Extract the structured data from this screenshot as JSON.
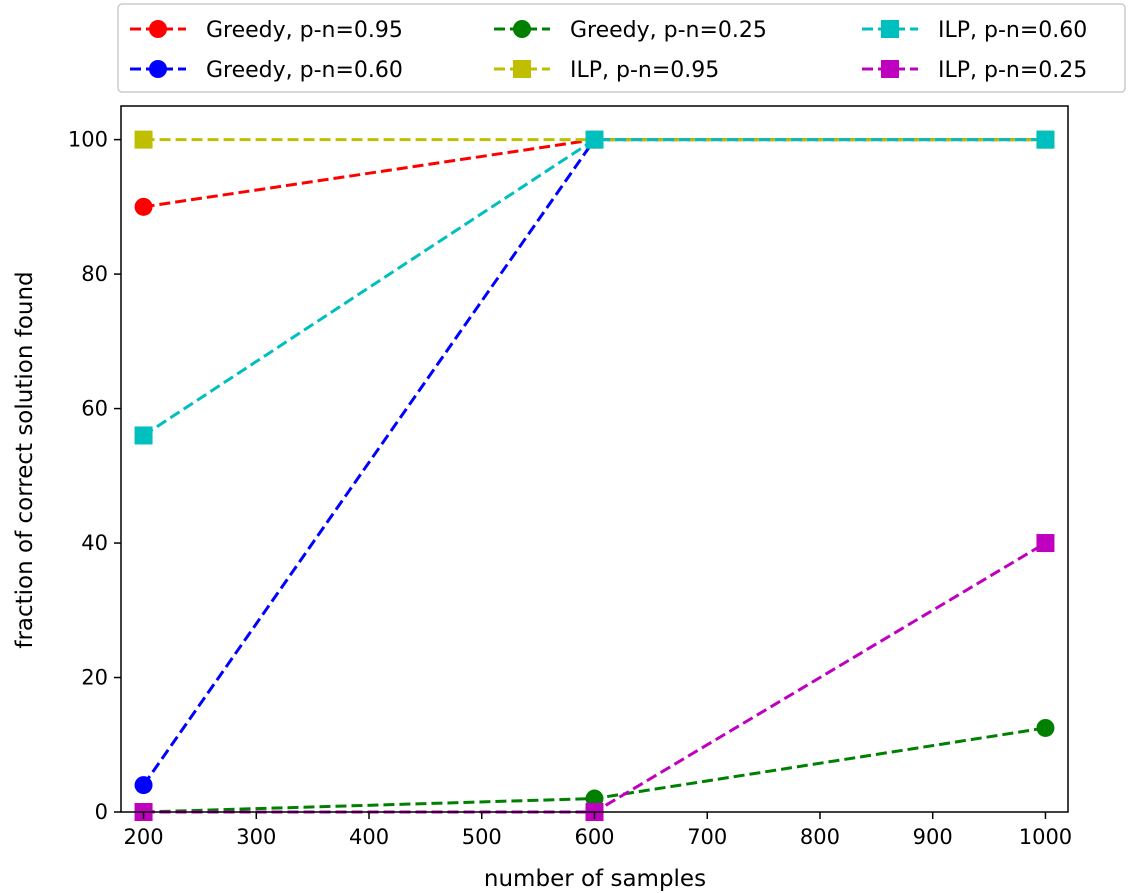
{
  "chart_data": {
    "type": "line",
    "title": "",
    "xlabel": "number of samples",
    "ylabel": "fraction of correct solution found",
    "xlim": [
      180,
      1020
    ],
    "ylim": [
      0,
      105
    ],
    "x": [
      200,
      600,
      1000
    ],
    "x_ticks": [
      200,
      300,
      400,
      500,
      600,
      700,
      800,
      900,
      1000
    ],
    "y_ticks": [
      0,
      20,
      40,
      60,
      80,
      100
    ],
    "grid": false,
    "legend_position": "top (above plot)",
    "series": [
      {
        "name": "Greedy, p-n=0.95",
        "color": "#ff0000",
        "marker": "circle",
        "values": [
          90,
          100,
          100
        ]
      },
      {
        "name": "Greedy, p-n=0.60",
        "color": "#0000ff",
        "marker": "circle",
        "values": [
          4,
          100,
          100
        ]
      },
      {
        "name": "Greedy, p-n=0.25",
        "color": "#008000",
        "marker": "circle",
        "values": [
          0,
          2,
          12.5
        ]
      },
      {
        "name": "ILP, p-n=0.95",
        "color": "#bfbf00",
        "marker": "square",
        "values": [
          100,
          100,
          100
        ]
      },
      {
        "name": "ILP, p-n=0.60",
        "color": "#00bfbf",
        "marker": "square",
        "values": [
          56,
          100,
          100
        ]
      },
      {
        "name": "ILP, p-n=0.25",
        "color": "#bf00bf",
        "marker": "square",
        "values": [
          0,
          0,
          40
        ]
      }
    ]
  }
}
